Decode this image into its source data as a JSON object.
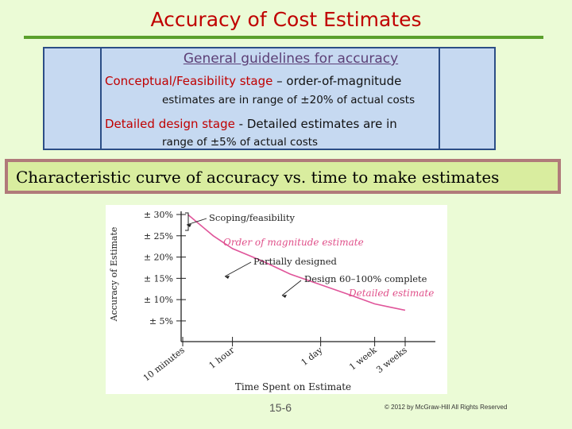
{
  "slide": {
    "title": "Accuracy of Cost Estimates",
    "guidelines": {
      "heading": "General guidelines for accuracy",
      "stage1_label": "Conceptual/Feasibility stage",
      "stage1_rest": " – order-of-magnitude",
      "stage1_line2": "estimates are in range of ±20% of actual costs",
      "stage2_label": "Detailed design stage",
      "stage2_rest": " - Detailed estimates are in",
      "stage2_line2": "range of ±5% of actual costs"
    },
    "banner": "Characteristic curve of accuracy vs. time to make estimates",
    "page_number": "15-6",
    "copyright": "© 2012 by McGraw-Hill   All Rights Reserved"
  },
  "colors": {
    "background": "#ebfbd6",
    "title": "#c00000",
    "rule": "#5aa02c",
    "box_fill": "#c6d9f1",
    "curve": "#e0559a",
    "highlight_label": "#e0508a"
  },
  "chart_data": {
    "type": "line",
    "title": "",
    "ylabel": "Accuracy of Estimate",
    "xlabel": "Time Spent on Estimate",
    "y_ticks": [
      "± 30%",
      "± 25%",
      "± 20%",
      "± 15%",
      "± 10%",
      "± 5%"
    ],
    "y_tick_values": [
      30,
      25,
      20,
      15,
      10,
      5
    ],
    "x_ticks": [
      "10 minutes",
      "1 hour",
      "1 day",
      "1 week",
      "3 weeks"
    ],
    "x_scale": "log",
    "grid": false,
    "series": [
      {
        "x_hours": [
          0.2,
          0.5,
          1,
          3,
          8,
          24,
          72,
          168,
          300,
          504
        ],
        "y_percent": [
          30,
          25,
          22,
          19,
          16,
          13.5,
          11,
          9,
          8.2,
          7.5
        ]
      }
    ],
    "annotations": [
      {
        "text": "Scoping/feasibility",
        "style": "normal"
      },
      {
        "text": "Order of magnitude estimate",
        "style": "highlight"
      },
      {
        "text": "Partially designed",
        "style": "normal"
      },
      {
        "text": "Design 60–100% complete",
        "style": "normal"
      },
      {
        "text": "Detailed estimate",
        "style": "highlight"
      }
    ]
  }
}
